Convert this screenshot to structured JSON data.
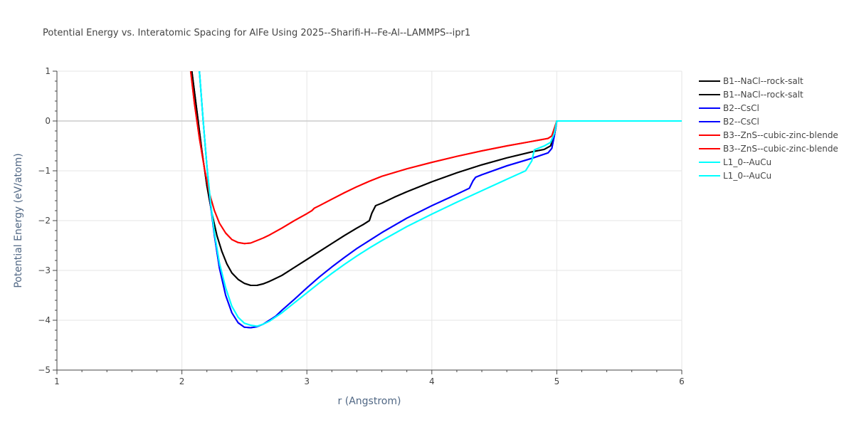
{
  "chart_data": {
    "type": "line",
    "title": "Potential Energy vs. Interatomic Spacing for AlFe Using 2025--Sharifi-H--Fe-Al--LAMMPS--ipr1",
    "xlabel": "r (Angstrom)",
    "ylabel": "Potential Energy (eV/atom)",
    "xlim": [
      1,
      6
    ],
    "ylim": [
      -5,
      1
    ],
    "xticks": [
      1,
      2,
      3,
      4,
      5,
      6
    ],
    "yticks": [
      1,
      0,
      -1,
      -2,
      -3,
      -4,
      -5
    ],
    "ytick_labels": [
      "1",
      "0",
      "−1",
      "−2",
      "−3",
      "−4",
      "−5"
    ],
    "grid": true,
    "legend_position": "right",
    "series": [
      {
        "name": "B1--NaCl--rock-salt",
        "color": "#000000",
        "x": [
          2.08,
          2.12,
          2.16,
          2.2,
          2.24,
          2.28,
          2.32,
          2.36,
          2.4,
          2.45,
          2.5,
          2.55,
          2.6,
          2.65,
          2.7,
          2.8,
          2.9,
          3.0,
          3.1,
          3.2,
          3.3,
          3.4,
          3.45,
          3.5,
          3.52,
          3.55,
          3.6,
          3.7,
          3.8,
          3.9,
          4.0,
          4.2,
          4.4,
          4.6,
          4.8,
          4.9,
          4.95,
          4.98,
          5.0,
          6.0
        ],
        "y": [
          1.0,
          0.2,
          -0.6,
          -1.3,
          -1.85,
          -2.3,
          -2.62,
          -2.87,
          -3.05,
          -3.18,
          -3.26,
          -3.3,
          -3.3,
          -3.27,
          -3.22,
          -3.1,
          -2.94,
          -2.78,
          -2.62,
          -2.46,
          -2.3,
          -2.15,
          -2.08,
          -2.0,
          -1.85,
          -1.7,
          -1.65,
          -1.53,
          -1.42,
          -1.32,
          -1.22,
          -1.04,
          -0.88,
          -0.74,
          -0.62,
          -0.57,
          -0.5,
          -0.3,
          0.0,
          0.0
        ]
      },
      {
        "name": "B1--NaCl--rock-salt",
        "color": "#000000",
        "x": [
          2.08,
          2.12,
          2.16,
          2.2,
          2.24,
          2.28,
          2.32,
          2.36,
          2.4,
          2.45,
          2.5,
          2.55,
          2.6,
          2.65,
          2.7,
          2.8,
          2.9,
          3.0,
          3.1,
          3.2,
          3.3,
          3.4,
          3.45,
          3.5,
          3.52,
          3.55,
          3.6,
          3.7,
          3.8,
          3.9,
          4.0,
          4.2,
          4.4,
          4.6,
          4.8,
          4.9,
          4.95,
          4.98,
          5.0,
          6.0
        ],
        "y": [
          1.0,
          0.2,
          -0.6,
          -1.3,
          -1.85,
          -2.3,
          -2.62,
          -2.87,
          -3.05,
          -3.18,
          -3.26,
          -3.3,
          -3.3,
          -3.27,
          -3.22,
          -3.1,
          -2.94,
          -2.78,
          -2.62,
          -2.46,
          -2.3,
          -2.15,
          -2.08,
          -2.0,
          -1.85,
          -1.7,
          -1.65,
          -1.53,
          -1.42,
          -1.32,
          -1.22,
          -1.04,
          -0.88,
          -0.74,
          -0.62,
          -0.57,
          -0.5,
          -0.3,
          0.0,
          0.0
        ]
      },
      {
        "name": "B2--CsCl",
        "color": "#0000ff",
        "x": [
          2.14,
          2.17,
          2.2,
          2.23,
          2.26,
          2.3,
          2.35,
          2.4,
          2.45,
          2.5,
          2.55,
          2.6,
          2.65,
          2.7,
          2.75,
          2.8,
          2.9,
          3.0,
          3.1,
          3.2,
          3.3,
          3.4,
          3.5,
          3.6,
          3.8,
          4.0,
          4.2,
          4.3,
          4.33,
          4.35,
          4.4,
          4.6,
          4.8,
          4.93,
          4.96,
          4.98,
          5.0,
          6.0
        ],
        "y": [
          1.0,
          0.0,
          -0.9,
          -1.7,
          -2.3,
          -2.95,
          -3.5,
          -3.85,
          -4.05,
          -4.14,
          -4.15,
          -4.13,
          -4.08,
          -4.0,
          -3.92,
          -3.8,
          -3.58,
          -3.35,
          -3.13,
          -2.93,
          -2.74,
          -2.56,
          -2.4,
          -2.24,
          -1.95,
          -1.7,
          -1.47,
          -1.35,
          -1.2,
          -1.13,
          -1.08,
          -0.9,
          -0.75,
          -0.64,
          -0.55,
          -0.3,
          0.0,
          0.0
        ]
      },
      {
        "name": "B2--CsCl",
        "color": "#0000ff",
        "x": [
          2.14,
          2.17,
          2.2,
          2.23,
          2.26,
          2.3,
          2.35,
          2.4,
          2.45,
          2.5,
          2.55,
          2.6,
          2.65,
          2.7,
          2.75,
          2.8,
          2.9,
          3.0,
          3.1,
          3.2,
          3.3,
          3.4,
          3.5,
          3.6,
          3.8,
          4.0,
          4.2,
          4.3,
          4.33,
          4.35,
          4.4,
          4.6,
          4.8,
          4.93,
          4.96,
          4.98,
          5.0,
          6.0
        ],
        "y": [
          1.0,
          0.0,
          -0.9,
          -1.7,
          -2.3,
          -2.95,
          -3.5,
          -3.85,
          -4.05,
          -4.14,
          -4.15,
          -4.13,
          -4.08,
          -4.0,
          -3.92,
          -3.8,
          -3.58,
          -3.35,
          -3.13,
          -2.93,
          -2.74,
          -2.56,
          -2.4,
          -2.24,
          -1.95,
          -1.7,
          -1.47,
          -1.35,
          -1.2,
          -1.13,
          -1.08,
          -0.9,
          -0.75,
          -0.64,
          -0.55,
          -0.3,
          0.0,
          0.0
        ]
      },
      {
        "name": "B3--ZnS--cubic-zinc-blende",
        "color": "#ff0000",
        "x": [
          2.07,
          2.1,
          2.14,
          2.18,
          2.22,
          2.26,
          2.3,
          2.35,
          2.4,
          2.45,
          2.5,
          2.55,
          2.6,
          2.65,
          2.7,
          2.8,
          2.9,
          3.0,
          3.04,
          3.06,
          3.1,
          3.2,
          3.3,
          3.4,
          3.5,
          3.6,
          3.8,
          4.0,
          4.2,
          4.4,
          4.6,
          4.8,
          4.93,
          4.96,
          4.98,
          5.0,
          6.0
        ],
        "y": [
          1.0,
          0.35,
          -0.35,
          -0.95,
          -1.45,
          -1.8,
          -2.05,
          -2.25,
          -2.38,
          -2.44,
          -2.46,
          -2.45,
          -2.4,
          -2.35,
          -2.29,
          -2.15,
          -2.0,
          -1.86,
          -1.8,
          -1.75,
          -1.7,
          -1.57,
          -1.44,
          -1.32,
          -1.21,
          -1.11,
          -0.96,
          -0.83,
          -0.71,
          -0.6,
          -0.5,
          -0.41,
          -0.35,
          -0.3,
          -0.15,
          0.0,
          0.0
        ]
      },
      {
        "name": "B3--ZnS--cubic-zinc-blende",
        "color": "#ff0000",
        "x": [
          2.07,
          2.1,
          2.14,
          2.18,
          2.22,
          2.26,
          2.3,
          2.35,
          2.4,
          2.45,
          2.5,
          2.55,
          2.6,
          2.65,
          2.7,
          2.8,
          2.9,
          3.0,
          3.04,
          3.06,
          3.1,
          3.2,
          3.3,
          3.4,
          3.5,
          3.6,
          3.8,
          4.0,
          4.2,
          4.4,
          4.6,
          4.8,
          4.93,
          4.96,
          4.98,
          5.0,
          6.0
        ],
        "y": [
          1.0,
          0.35,
          -0.35,
          -0.95,
          -1.45,
          -1.8,
          -2.05,
          -2.25,
          -2.38,
          -2.44,
          -2.46,
          -2.45,
          -2.4,
          -2.35,
          -2.29,
          -2.15,
          -2.0,
          -1.86,
          -1.8,
          -1.75,
          -1.7,
          -1.57,
          -1.44,
          -1.32,
          -1.21,
          -1.11,
          -0.96,
          -0.83,
          -0.71,
          -0.6,
          -0.5,
          -0.41,
          -0.35,
          -0.3,
          -0.15,
          0.0,
          0.0
        ]
      },
      {
        "name": "L1_0--AuCu",
        "color": "#00ffff",
        "x": [
          2.14,
          2.17,
          2.2,
          2.23,
          2.26,
          2.3,
          2.35,
          2.4,
          2.45,
          2.5,
          2.55,
          2.6,
          2.65,
          2.7,
          2.8,
          2.9,
          3.0,
          3.1,
          3.2,
          3.3,
          3.4,
          3.5,
          3.6,
          3.8,
          4.0,
          4.2,
          4.4,
          4.6,
          4.75,
          4.8,
          4.82,
          4.9,
          4.95,
          4.98,
          5.0,
          6.0
        ],
        "y": [
          1.0,
          0.0,
          -0.9,
          -1.65,
          -2.25,
          -2.85,
          -3.35,
          -3.72,
          -3.94,
          -4.06,
          -4.1,
          -4.12,
          -4.08,
          -4.02,
          -3.85,
          -3.65,
          -3.45,
          -3.25,
          -3.06,
          -2.88,
          -2.71,
          -2.55,
          -2.4,
          -2.12,
          -1.87,
          -1.63,
          -1.4,
          -1.17,
          -1.0,
          -0.8,
          -0.58,
          -0.5,
          -0.43,
          -0.25,
          0.0,
          0.0
        ]
      },
      {
        "name": "L1_0--AuCu",
        "color": "#00ffff",
        "x": [
          2.14,
          2.17,
          2.2,
          2.23,
          2.26,
          2.3,
          2.35,
          2.4,
          2.45,
          2.5,
          2.55,
          2.6,
          2.65,
          2.7,
          2.8,
          2.9,
          3.0,
          3.1,
          3.2,
          3.3,
          3.4,
          3.5,
          3.6,
          3.8,
          4.0,
          4.2,
          4.4,
          4.6,
          4.75,
          4.8,
          4.82,
          4.9,
          4.95,
          4.98,
          5.0,
          6.0
        ],
        "y": [
          1.0,
          0.0,
          -0.9,
          -1.65,
          -2.25,
          -2.85,
          -3.35,
          -3.72,
          -3.94,
          -4.06,
          -4.1,
          -4.12,
          -4.08,
          -4.02,
          -3.85,
          -3.65,
          -3.45,
          -3.25,
          -3.06,
          -2.88,
          -2.71,
          -2.55,
          -2.4,
          -2.12,
          -1.87,
          -1.63,
          -1.4,
          -1.17,
          -1.0,
          -0.8,
          -0.58,
          -0.5,
          -0.43,
          -0.25,
          0.0,
          0.0
        ]
      }
    ]
  }
}
